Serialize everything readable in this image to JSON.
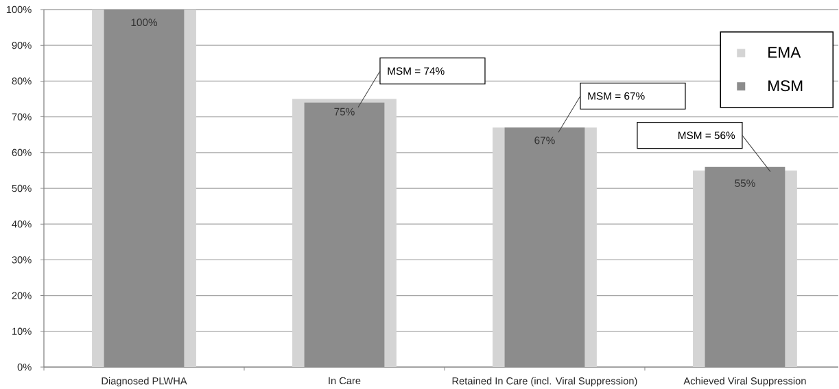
{
  "chart_data": {
    "type": "bar",
    "categories": [
      "Diagnosed PLWHA",
      "In Care",
      "Retained In Care (incl. Viral Suppression)",
      "Achieved Viral Suppression"
    ],
    "series": [
      {
        "name": "EMA",
        "color": "#d4d4d4",
        "values": [
          100,
          75,
          67,
          55
        ],
        "value_labels": [
          "100%",
          "75%",
          "67%",
          "55%"
        ]
      },
      {
        "name": "MSM",
        "color": "#8c8c8c",
        "values": [
          100,
          74,
          67,
          56
        ],
        "value_labels": [
          null,
          "MSM = 74%",
          "MSM = 67%",
          "MSM = 56%"
        ]
      }
    ],
    "ylim": [
      0,
      100
    ],
    "yticks": [
      {
        "value": 0,
        "label": "0%"
      },
      {
        "value": 10,
        "label": "10%"
      },
      {
        "value": 20,
        "label": "20%"
      },
      {
        "value": 30,
        "label": "30%"
      },
      {
        "value": 40,
        "label": "40%"
      },
      {
        "value": 50,
        "label": "50%"
      },
      {
        "value": 60,
        "label": "60%"
      },
      {
        "value": 70,
        "label": "70%"
      },
      {
        "value": 80,
        "label": "80%"
      },
      {
        "value": 90,
        "label": "90%"
      },
      {
        "value": 100,
        "label": "100%"
      }
    ],
    "grid": "y",
    "legend": "top right"
  }
}
